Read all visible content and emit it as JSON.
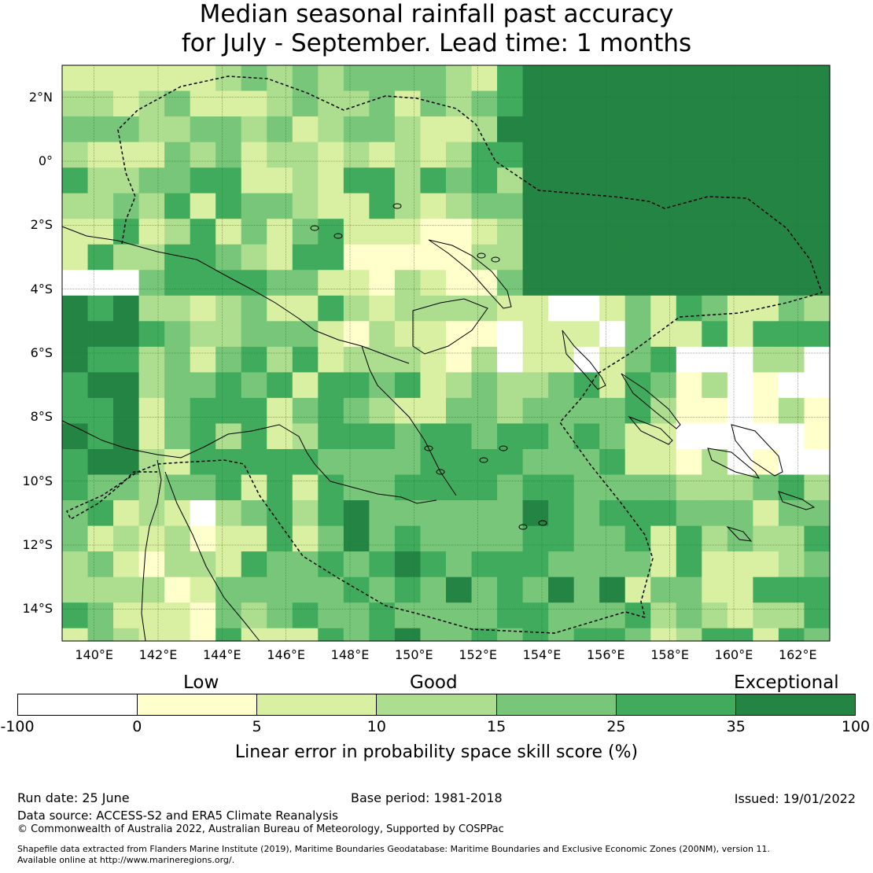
{
  "title": {
    "line1": "Median seasonal rainfall past accuracy",
    "line2": "for July - September. Lead time: 1 months"
  },
  "map": {
    "longitude_labels": [
      "140°E",
      "142°E",
      "144°E",
      "146°E",
      "148°E",
      "150°E",
      "152°E",
      "154°E",
      "156°E",
      "158°E",
      "160°E",
      "162°E"
    ],
    "latitude_labels": [
      "2°N",
      "0°",
      "2°S",
      "4°S",
      "6°S",
      "8°S",
      "10°S",
      "12°S",
      "14°S"
    ],
    "extent": {
      "lon_min": 139,
      "lon_max": 163,
      "lat_min": -15,
      "lat_max": 3
    },
    "grid_resolution_deg": 0.8,
    "coastline_color": "#000000",
    "boundary_style": "dashed"
  },
  "legend": {
    "category_labels": [
      "Low",
      "Good",
      "Exceptional"
    ],
    "tick_labels": [
      "-100",
      "0",
      "5",
      "10",
      "15",
      "25",
      "35",
      "100"
    ],
    "colors": [
      "#ffffff",
      "#ffffcc",
      "#d9f0a3",
      "#addd8e",
      "#78c679",
      "#41ab5d",
      "#238443"
    ],
    "title": "Linear error in probability space skill score (%)"
  },
  "footer": {
    "run_date": "Run date: 25 June",
    "base_period": "Base period: 1981-2018",
    "issued": "Issued: 19/01/2022",
    "data_source": "Data source: ACCESS-S2 and ERA5 Climate Reanalysis",
    "copyright": "© Commonwealth of Australia 2022, Australian Bureau of Meteorology, Supported by COSPPac",
    "shapefile_line1": "Shapefile data extracted from Flanders Marine Institute (2019), Maritime Boundaries Geodatabase: Maritime Boundaries and Exclusive Economic Zones (200NM), version 11.",
    "shapefile_line2": "Available online at http://www.marineregions.org/."
  }
}
